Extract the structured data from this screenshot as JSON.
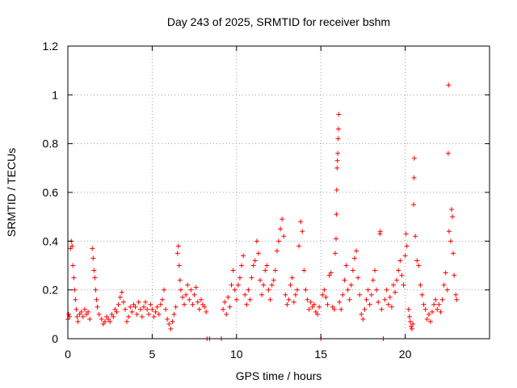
{
  "chart_data": {
    "type": "scatter",
    "title": "Day 243 of 2025, SRMTID for receiver bshm",
    "xlabel": "GPS time / hours",
    "ylabel": "SRMTID / TECUs",
    "xlim": [
      0,
      25
    ],
    "ylim": [
      0,
      1.2
    ],
    "x_ticks": [
      0,
      5,
      10,
      15,
      20
    ],
    "x_tick_labels": [
      "0",
      "5",
      "10",
      "15",
      "20"
    ],
    "y_ticks": [
      0,
      0.2,
      0.4,
      0.6,
      0.8,
      1.0,
      1.2
    ],
    "y_tick_labels": [
      "0",
      "0.2",
      "0.4",
      "0.6",
      "0.8",
      "1",
      "1.2"
    ],
    "grid": true,
    "marker": "+",
    "color": "#ff0000",
    "series": [
      {
        "name": "SRMTID",
        "points": [
          [
            0.0,
            0.08
          ],
          [
            0.05,
            0.1
          ],
          [
            0.1,
            0.09
          ],
          [
            0.15,
            0.37
          ],
          [
            0.2,
            0.4
          ],
          [
            0.25,
            0.38
          ],
          [
            0.3,
            0.3
          ],
          [
            0.35,
            0.25
          ],
          [
            0.4,
            0.2
          ],
          [
            0.45,
            0.16
          ],
          [
            0.5,
            0.12
          ],
          [
            0.55,
            0.09
          ],
          [
            0.6,
            0.07
          ],
          [
            0.7,
            0.1
          ],
          [
            0.8,
            0.11
          ],
          [
            0.9,
            0.09
          ],
          [
            1.0,
            0.12
          ],
          [
            1.1,
            0.1
          ],
          [
            1.2,
            0.11
          ],
          [
            1.3,
            0.08
          ],
          [
            1.45,
            0.37
          ],
          [
            1.5,
            0.33
          ],
          [
            1.55,
            0.28
          ],
          [
            1.6,
            0.25
          ],
          [
            1.65,
            0.2
          ],
          [
            1.7,
            0.16
          ],
          [
            1.75,
            0.13
          ],
          [
            1.85,
            0.1
          ],
          [
            2.0,
            0.08
          ],
          [
            2.1,
            0.06
          ],
          [
            2.2,
            0.07
          ],
          [
            2.3,
            0.09
          ],
          [
            2.4,
            0.08
          ],
          [
            2.5,
            0.07
          ],
          [
            2.6,
            0.1
          ],
          [
            2.7,
            0.09
          ],
          [
            2.8,
            0.12
          ],
          [
            2.9,
            0.11
          ],
          [
            3.0,
            0.14
          ],
          [
            3.1,
            0.17
          ],
          [
            3.2,
            0.19
          ],
          [
            3.3,
            0.15
          ],
          [
            3.4,
            0.12
          ],
          [
            3.5,
            0.07
          ],
          [
            3.6,
            0.09
          ],
          [
            3.7,
            0.13
          ],
          [
            3.8,
            0.11
          ],
          [
            3.9,
            0.14
          ],
          [
            4.0,
            0.13
          ],
          [
            4.1,
            0.1
          ],
          [
            4.2,
            0.15
          ],
          [
            4.3,
            0.12
          ],
          [
            4.4,
            0.09
          ],
          [
            4.5,
            0.13
          ],
          [
            4.6,
            0.15
          ],
          [
            4.7,
            0.12
          ],
          [
            4.8,
            0.1
          ],
          [
            4.9,
            0.14
          ],
          [
            5.0,
            0.12
          ],
          [
            5.1,
            0.09
          ],
          [
            5.2,
            0.11
          ],
          [
            5.3,
            0.13
          ],
          [
            5.4,
            0.1
          ],
          [
            5.5,
            0.14
          ],
          [
            5.6,
            0.16
          ],
          [
            5.7,
            0.2
          ],
          [
            5.8,
            0.12
          ],
          [
            5.9,
            0.08
          ],
          [
            6.0,
            0.06
          ],
          [
            6.1,
            0.04
          ],
          [
            6.2,
            0.07
          ],
          [
            6.3,
            0.1
          ],
          [
            6.4,
            0.13
          ],
          [
            6.5,
            0.35
          ],
          [
            6.55,
            0.38
          ],
          [
            6.6,
            0.3
          ],
          [
            6.65,
            0.24
          ],
          [
            6.7,
            0.2
          ],
          [
            6.8,
            0.17
          ],
          [
            6.9,
            0.14
          ],
          [
            7.0,
            0.18
          ],
          [
            7.1,
            0.22
          ],
          [
            7.2,
            0.16
          ],
          [
            7.3,
            0.2
          ],
          [
            7.4,
            0.14
          ],
          [
            7.5,
            0.18
          ],
          [
            7.6,
            0.21
          ],
          [
            7.7,
            0.15
          ],
          [
            7.8,
            0.12
          ],
          [
            7.9,
            0.16
          ],
          [
            8.0,
            0.14
          ],
          [
            8.1,
            0.13
          ],
          [
            8.2,
            0.11
          ],
          [
            8.25,
            0.0
          ],
          [
            8.4,
            0.0
          ],
          [
            9.1,
            0.0
          ],
          [
            9.2,
            0.12
          ],
          [
            9.3,
            0.15
          ],
          [
            9.4,
            0.1
          ],
          [
            9.5,
            0.17
          ],
          [
            9.6,
            0.13
          ],
          [
            9.7,
            0.22
          ],
          [
            9.8,
            0.28
          ],
          [
            9.9,
            0.2
          ],
          [
            10.0,
            0.16
          ],
          [
            10.1,
            0.22
          ],
          [
            10.2,
            0.25
          ],
          [
            10.3,
            0.3
          ],
          [
            10.4,
            0.34
          ],
          [
            10.5,
            0.18
          ],
          [
            10.6,
            0.14
          ],
          [
            10.7,
            0.2
          ],
          [
            10.8,
            0.16
          ],
          [
            10.9,
            0.25
          ],
          [
            11.0,
            0.3
          ],
          [
            11.1,
            0.32
          ],
          [
            11.2,
            0.4
          ],
          [
            11.3,
            0.35
          ],
          [
            11.4,
            0.24
          ],
          [
            11.5,
            0.18
          ],
          [
            11.6,
            0.22
          ],
          [
            11.7,
            0.28
          ],
          [
            11.8,
            0.3
          ],
          [
            11.9,
            0.2
          ],
          [
            12.0,
            0.16
          ],
          [
            12.1,
            0.22
          ],
          [
            12.2,
            0.24
          ],
          [
            12.3,
            0.28
          ],
          [
            12.4,
            0.36
          ],
          [
            12.5,
            0.4
          ],
          [
            12.6,
            0.45
          ],
          [
            12.7,
            0.49
          ],
          [
            12.8,
            0.42
          ],
          [
            12.9,
            0.18
          ],
          [
            13.0,
            0.14
          ],
          [
            13.1,
            0.16
          ],
          [
            13.2,
            0.22
          ],
          [
            13.3,
            0.25
          ],
          [
            13.4,
            0.15
          ],
          [
            13.5,
            0.18
          ],
          [
            13.6,
            0.2
          ],
          [
            13.7,
            0.38
          ],
          [
            13.8,
            0.48
          ],
          [
            13.9,
            0.44
          ],
          [
            14.0,
            0.28
          ],
          [
            14.1,
            0.2
          ],
          [
            14.2,
            0.16
          ],
          [
            14.3,
            0.12
          ],
          [
            14.4,
            0.15
          ],
          [
            14.5,
            0.13
          ],
          [
            14.6,
            0.14
          ],
          [
            14.7,
            0.11
          ],
          [
            14.8,
            0.1
          ],
          [
            14.9,
            0.13
          ],
          [
            15.0,
            0.0
          ],
          [
            15.1,
            0.18
          ],
          [
            15.2,
            0.2
          ],
          [
            15.3,
            0.17
          ],
          [
            15.4,
            0.14
          ],
          [
            15.5,
            0.26
          ],
          [
            15.6,
            0.27
          ],
          [
            15.7,
            0.13
          ],
          [
            15.8,
            0.12
          ],
          [
            15.85,
            0.35
          ],
          [
            15.9,
            0.41
          ],
          [
            15.92,
            0.51
          ],
          [
            15.94,
            0.61
          ],
          [
            15.96,
            0.7
          ],
          [
            15.98,
            0.73
          ],
          [
            16.0,
            0.76
          ],
          [
            16.02,
            0.82
          ],
          [
            16.04,
            0.86
          ],
          [
            16.06,
            0.92
          ],
          [
            16.1,
            0.15
          ],
          [
            16.2,
            0.12
          ],
          [
            16.3,
            0.18
          ],
          [
            16.4,
            0.24
          ],
          [
            16.5,
            0.3
          ],
          [
            16.6,
            0.2
          ],
          [
            16.7,
            0.16
          ],
          [
            16.8,
            0.22
          ],
          [
            16.9,
            0.28
          ],
          [
            17.0,
            0.33
          ],
          [
            17.1,
            0.36
          ],
          [
            17.2,
            0.25
          ],
          [
            17.3,
            0.18
          ],
          [
            17.4,
            0.1
          ],
          [
            17.5,
            0.08
          ],
          [
            17.6,
            0.12
          ],
          [
            17.7,
            0.16
          ],
          [
            17.8,
            0.2
          ],
          [
            17.9,
            0.14
          ],
          [
            18.0,
            0.18
          ],
          [
            18.1,
            0.24
          ],
          [
            18.2,
            0.28
          ],
          [
            18.3,
            0.2
          ],
          [
            18.4,
            0.15
          ],
          [
            18.5,
            0.43
          ],
          [
            18.52,
            0.44
          ],
          [
            18.6,
            0.12
          ],
          [
            18.7,
            0.0
          ],
          [
            18.8,
            0.16
          ],
          [
            18.9,
            0.2
          ],
          [
            19.0,
            0.14
          ],
          [
            19.1,
            0.17
          ],
          [
            19.2,
            0.13
          ],
          [
            19.3,
            0.22
          ],
          [
            19.4,
            0.19
          ],
          [
            19.5,
            0.24
          ],
          [
            19.6,
            0.28
          ],
          [
            19.7,
            0.32
          ],
          [
            19.8,
            0.26
          ],
          [
            19.9,
            0.22
          ],
          [
            20.0,
            0.34
          ],
          [
            20.05,
            0.43
          ],
          [
            20.1,
            0.38
          ],
          [
            20.2,
            0.12
          ],
          [
            20.25,
            0.09
          ],
          [
            20.3,
            0.07
          ],
          [
            20.35,
            0.05
          ],
          [
            20.4,
            0.04
          ],
          [
            20.45,
            0.06
          ],
          [
            20.5,
            0.55
          ],
          [
            20.52,
            0.66
          ],
          [
            20.54,
            0.74
          ],
          [
            20.6,
            0.42
          ],
          [
            20.7,
            0.32
          ],
          [
            20.8,
            0.3
          ],
          [
            20.9,
            0.22
          ],
          [
            21.0,
            0.18
          ],
          [
            21.1,
            0.14
          ],
          [
            21.2,
            0.12
          ],
          [
            21.3,
            0.08
          ],
          [
            21.4,
            0.1
          ],
          [
            21.5,
            0.07
          ],
          [
            21.6,
            0.11
          ],
          [
            21.7,
            0.14
          ],
          [
            21.8,
            0.16
          ],
          [
            21.9,
            0.12
          ],
          [
            22.0,
            0.14
          ],
          [
            22.1,
            0.11
          ],
          [
            22.2,
            0.16
          ],
          [
            22.3,
            0.22
          ],
          [
            22.4,
            0.27
          ],
          [
            22.5,
            0.2
          ],
          [
            22.55,
            0.76
          ],
          [
            22.57,
            1.04
          ],
          [
            22.6,
            0.44
          ],
          [
            22.7,
            0.4
          ],
          [
            22.75,
            0.53
          ],
          [
            22.8,
            0.5
          ],
          [
            22.85,
            0.35
          ],
          [
            22.9,
            0.26
          ],
          [
            23.0,
            0.18
          ],
          [
            23.05,
            0.16
          ]
        ]
      }
    ]
  }
}
